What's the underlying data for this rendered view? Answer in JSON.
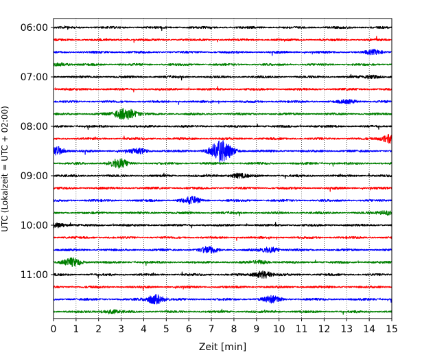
{
  "chart_data": {
    "type": "line",
    "title": "",
    "xlabel": "Zeit  [min]",
    "ylabel": "UTC (Lokalzeit = UTC + 02:00)",
    "xlim": [
      0,
      15
    ],
    "x_ticks": [
      "0",
      "1",
      "2",
      "3",
      "4",
      "5",
      "6",
      "7",
      "8",
      "9",
      "10",
      "11",
      "12",
      "13",
      "14",
      "15"
    ],
    "y_ticks": [
      "06:00",
      "07:00",
      "08:00",
      "09:00",
      "10:00",
      "11:00"
    ],
    "grid": "vertical dotted",
    "row_interval_minutes": 15,
    "row_start": "06:00",
    "row_colors": [
      "#000000",
      "#ff0000",
      "#0000ff",
      "#008000"
    ],
    "series": [
      {
        "start": "06:00",
        "color": "#000000",
        "events": []
      },
      {
        "start": "06:15",
        "color": "#ff0000",
        "events": []
      },
      {
        "start": "06:30",
        "color": "#0000ff",
        "events": [
          {
            "t": 14.2,
            "amp": 0.35
          }
        ]
      },
      {
        "start": "06:45",
        "color": "#008000",
        "events": [
          {
            "t": 0.3,
            "amp": 0.25
          }
        ]
      },
      {
        "start": "07:00",
        "color": "#000000",
        "events": [
          {
            "t": 14.1,
            "amp": 0.3
          }
        ]
      },
      {
        "start": "07:15",
        "color": "#ff0000",
        "events": []
      },
      {
        "start": "07:30",
        "color": "#0000ff",
        "events": [
          {
            "t": 13.1,
            "amp": 0.3
          }
        ]
      },
      {
        "start": "07:45",
        "color": "#008000",
        "events": [
          {
            "t": 3.2,
            "amp": 1.1
          }
        ]
      },
      {
        "start": "08:00",
        "color": "#000000",
        "events": []
      },
      {
        "start": "08:15",
        "color": "#ff0000",
        "events": [
          {
            "t": 14.95,
            "amp": 0.9
          }
        ]
      },
      {
        "start": "08:30",
        "color": "#0000ff",
        "events": [
          {
            "t": 0.1,
            "amp": 0.9
          },
          {
            "t": 3.8,
            "amp": 0.45
          },
          {
            "t": 7.45,
            "amp": 2.1
          }
        ]
      },
      {
        "start": "08:45",
        "color": "#008000",
        "events": [
          {
            "t": 2.9,
            "amp": 0.9
          }
        ]
      },
      {
        "start": "09:00",
        "color": "#000000",
        "events": [
          {
            "t": 8.2,
            "amp": 0.4
          }
        ]
      },
      {
        "start": "09:15",
        "color": "#ff0000",
        "events": []
      },
      {
        "start": "09:30",
        "color": "#0000ff",
        "events": [
          {
            "t": 6.1,
            "amp": 0.65
          }
        ]
      },
      {
        "start": "09:45",
        "color": "#008000",
        "events": [
          {
            "t": 14.8,
            "amp": 0.4
          }
        ]
      },
      {
        "start": "10:00",
        "color": "#000000",
        "events": [
          {
            "t": 0.15,
            "amp": 0.45
          }
        ]
      },
      {
        "start": "10:15",
        "color": "#ff0000",
        "events": []
      },
      {
        "start": "10:30",
        "color": "#0000ff",
        "events": [
          {
            "t": 6.9,
            "amp": 0.6
          },
          {
            "t": 9.6,
            "amp": 0.55
          }
        ]
      },
      {
        "start": "10:45",
        "color": "#008000",
        "events": [
          {
            "t": 0.85,
            "amp": 0.8
          },
          {
            "t": 9.2,
            "amp": 0.3
          }
        ]
      },
      {
        "start": "11:00",
        "color": "#000000",
        "events": [
          {
            "t": 9.3,
            "amp": 0.7
          }
        ]
      },
      {
        "start": "11:15",
        "color": "#ff0000",
        "events": []
      },
      {
        "start": "11:30",
        "color": "#0000ff",
        "events": [
          {
            "t": 4.5,
            "amp": 0.95
          },
          {
            "t": 9.7,
            "amp": 0.6
          }
        ]
      },
      {
        "start": "11:45",
        "color": "#008000",
        "events": [
          {
            "t": 2.5,
            "amp": 0.35
          }
        ]
      }
    ]
  }
}
